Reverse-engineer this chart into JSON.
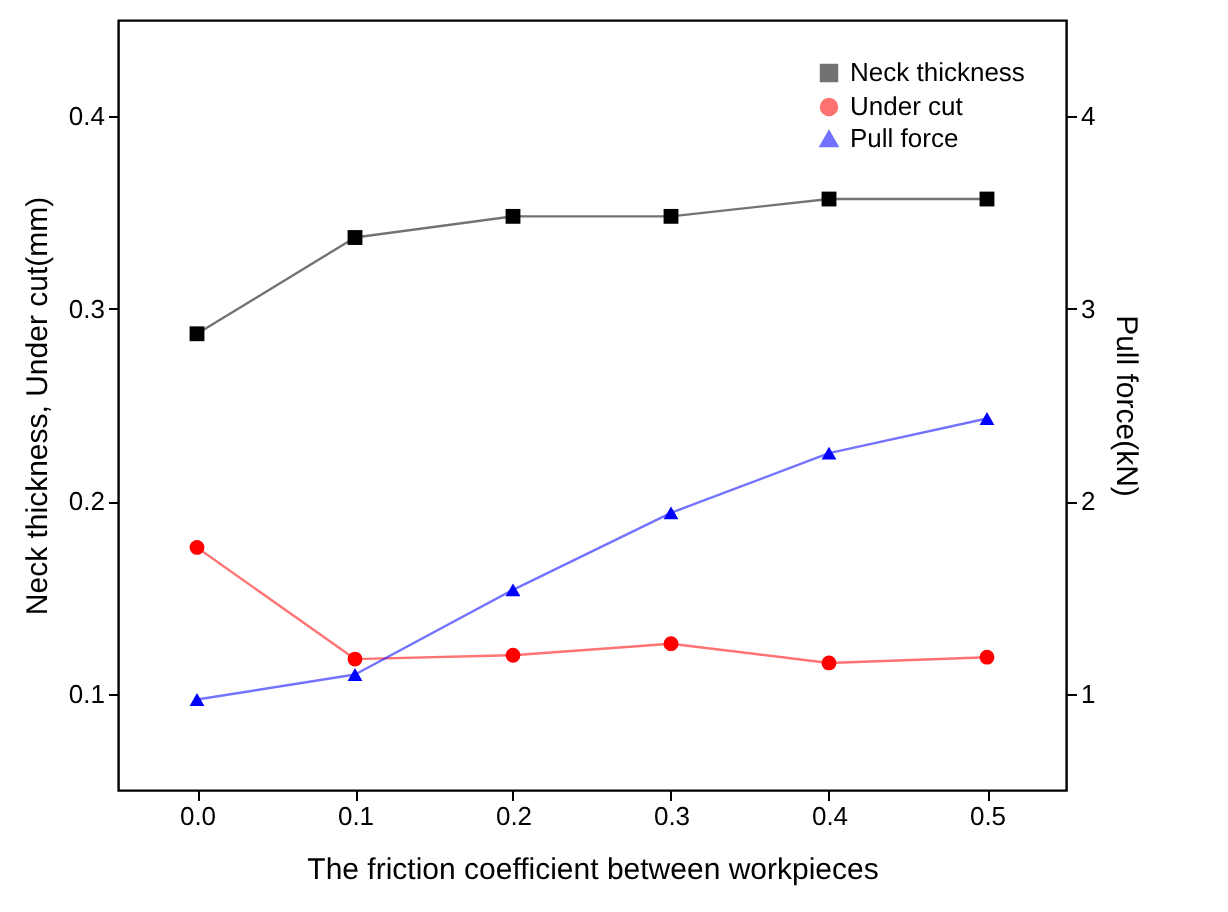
{
  "chart_data": {
    "type": "line",
    "xlabel": "The friction coefficient between workpieces",
    "ylabel": "Neck thickness, Under cut(mm)",
    "y2label": "Pull force(kN)",
    "x": [
      0,
      0.1,
      0.2,
      0.3,
      0.4,
      0.5
    ],
    "xlim": [
      -0.05,
      0.55
    ],
    "xticks": [
      {
        "value": 0,
        "label": "0.0"
      },
      0.1,
      0.2,
      0.3,
      0.4,
      0.5
    ],
    "ylim": [
      0.05,
      0.45
    ],
    "yticks": [
      0.1,
      0.2,
      0.3,
      0.4
    ],
    "y2lim": [
      0.5,
      4.5
    ],
    "y2ticks": [
      1,
      2,
      3,
      4
    ],
    "grid": false,
    "legend": "top right",
    "line_style": "solid",
    "series": [
      {
        "name": "Neck thickness",
        "color": "#000000",
        "marker": "square",
        "values": [
          0.287,
          0.337,
          0.348,
          0.348,
          0.357,
          0.357
        ]
      },
      {
        "name": "Under cut",
        "color": "#ff0000",
        "marker": "circle",
        "values": [
          0.176,
          0.118,
          0.12,
          0.126,
          0.116,
          0.119
        ]
      },
      {
        "name": "Pull force",
        "color": "#0000ff",
        "marker": "triangle",
        "axis": "y2",
        "values": [
          0.97,
          1.1,
          1.54,
          1.94,
          2.25,
          2.43
        ]
      }
    ]
  }
}
